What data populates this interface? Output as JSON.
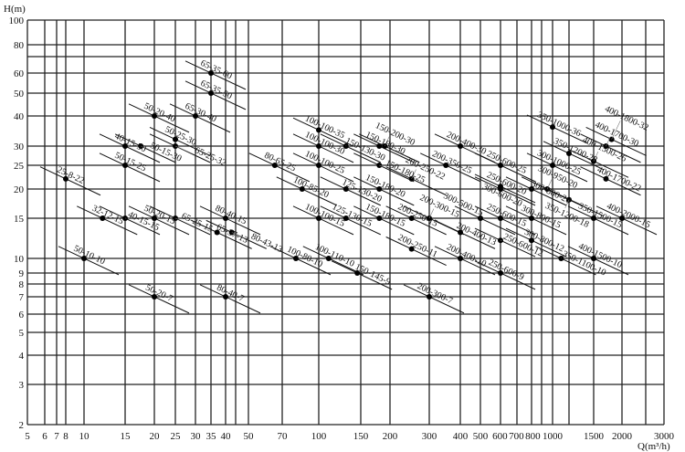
{
  "chart_data": {
    "type": "scatter",
    "title": "",
    "ylabel": "H(m)",
    "xlabel": "Q(m³/h)",
    "xscale": "log",
    "yscale": "log",
    "xlim": [
      5,
      3000
    ],
    "ylim": [
      2,
      100
    ],
    "grid": true,
    "x_ticks": [
      5,
      6,
      7,
      8,
      10,
      15,
      20,
      25,
      30,
      35,
      40,
      50,
      70,
      100,
      150,
      200,
      300,
      400,
      500,
      600,
      700,
      800,
      1000,
      1500,
      2000,
      3000
    ],
    "x_grid_extra": [
      45,
      900,
      1200,
      2500
    ],
    "y_ticks": [
      2,
      3,
      4,
      5,
      6,
      7,
      8,
      9,
      10,
      15,
      20,
      25,
      30,
      40,
      50,
      60,
      80,
      100
    ],
    "y_grid_extra": [
      70
    ],
    "points": [
      {
        "label": "25-8-22",
        "q": 8,
        "h": 22
      },
      {
        "label": "32-12-15",
        "q": 12,
        "h": 15
      },
      {
        "label": "40-15-15",
        "q": 15,
        "h": 15
      },
      {
        "label": "50-20-15",
        "q": 20,
        "h": 15
      },
      {
        "label": "65-25-15",
        "q": 25,
        "h": 15
      },
      {
        "label": "65-37-13",
        "q": 37,
        "h": 13
      },
      {
        "label": "80-40-15",
        "q": 40,
        "h": 15
      },
      {
        "label": "80-43-13",
        "q": 43,
        "h": 13
      },
      {
        "label": "50-10-10",
        "q": 10,
        "h": 10
      },
      {
        "label": "50-20-7",
        "q": 20,
        "h": 7
      },
      {
        "label": "80-40-7",
        "q": 40,
        "h": 7
      },
      {
        "label": "50-15-25",
        "q": 15,
        "h": 25
      },
      {
        "label": "40-15-30",
        "q": 15,
        "h": 30
      },
      {
        "label": "50-15-30",
        "q": 17.5,
        "h": 30
      },
      {
        "label": "50-20-40",
        "q": 20,
        "h": 40
      },
      {
        "label": "50-25-30",
        "q": 25,
        "h": 32
      },
      {
        "label": "65-25-32",
        "q": 25,
        "h": 30
      },
      {
        "label": "65-30-40",
        "q": 30,
        "h": 40
      },
      {
        "label": "65-35-50",
        "q": 35,
        "h": 50
      },
      {
        "label": "65-35-60",
        "q": 35,
        "h": 60
      },
      {
        "label": "80-65-25",
        "q": 65,
        "h": 25
      },
      {
        "label": "100-100-35",
        "q": 100,
        "h": 35
      },
      {
        "label": "100-100-30",
        "q": 100,
        "h": 30
      },
      {
        "label": "100-100-25",
        "q": 100,
        "h": 25
      },
      {
        "label": "150-130-30",
        "q": 130,
        "h": 30
      },
      {
        "label": "150-180-30",
        "q": 180,
        "h": 30
      },
      {
        "label": "150-200-30",
        "q": 190,
        "h": 30
      },
      {
        "label": "150-180-25",
        "q": 180,
        "h": 25
      },
      {
        "label": "200-250-22",
        "q": 250,
        "h": 22
      },
      {
        "label": "100-85-20",
        "q": 85,
        "h": 20
      },
      {
        "label": "125-130-20",
        "q": 130,
        "h": 20
      },
      {
        "label": "150-180-20",
        "q": 180,
        "h": 20
      },
      {
        "label": "100-100-15",
        "q": 100,
        "h": 15
      },
      {
        "label": "125-130-15",
        "q": 130,
        "h": 15
      },
      {
        "label": "150-180-15",
        "q": 180,
        "h": 15
      },
      {
        "label": "200-250-15",
        "q": 250,
        "h": 15
      },
      {
        "label": "200-300-15",
        "q": 300,
        "h": 15
      },
      {
        "label": "200-400-13",
        "q": 400,
        "h": 13
      },
      {
        "label": "200-400-10",
        "q": 400,
        "h": 10
      },
      {
        "label": "200-250-11",
        "q": 250,
        "h": 11
      },
      {
        "label": "100-80-10",
        "q": 80,
        "h": 10
      },
      {
        "label": "100-110-10",
        "q": 110,
        "h": 10
      },
      {
        "label": "150-145-9",
        "q": 145,
        "h": 9
      },
      {
        "label": "200-300-7",
        "q": 300,
        "h": 7
      },
      {
        "label": "200-400-30",
        "q": 400,
        "h": 30
      },
      {
        "label": "200-350-25",
        "q": 350,
        "h": 25
      },
      {
        "label": "250-600-25",
        "q": 600,
        "h": 25
      },
      {
        "label": "250-600-20",
        "q": 600,
        "h": 20.5
      },
      {
        "label": "300-600-20",
        "q": 600,
        "h": 20
      },
      {
        "label": "300-800-20",
        "q": 800,
        "h": 20
      },
      {
        "label": "300-950-20",
        "q": 950,
        "h": 20
      },
      {
        "label": "250-600-15",
        "q": 600,
        "h": 15
      },
      {
        "label": "300-500-15",
        "q": 500,
        "h": 15
      },
      {
        "label": "250-600-12",
        "q": 600,
        "h": 12
      },
      {
        "label": "250-600-9",
        "q": 600,
        "h": 9
      },
      {
        "label": "300-800-15",
        "q": 800,
        "h": 15
      },
      {
        "label": "300-800-12",
        "q": 800,
        "h": 12
      },
      {
        "label": "350-1100-10",
        "q": 1100,
        "h": 10
      },
      {
        "label": "400-1500-10",
        "q": 1500,
        "h": 10
      },
      {
        "label": "350-1500-15",
        "q": 1500,
        "h": 15
      },
      {
        "label": "400-2000-15",
        "q": 2000,
        "h": 15
      },
      {
        "label": "350-1200-18",
        "q": 1200,
        "h": 18
      },
      {
        "label": "300-1000-25",
        "q": 1000,
        "h": 25
      },
      {
        "label": "350-1200-28",
        "q": 1200,
        "h": 28
      },
      {
        "label": "350-1000-36",
        "q": 1000,
        "h": 36
      },
      {
        "label": "400-1500-26",
        "q": 1500,
        "h": 26
      },
      {
        "label": "400-1700-30",
        "q": 1700,
        "h": 30
      },
      {
        "label": "400-1800-32",
        "q": 1800,
        "h": 32
      },
      {
        "label": "400-1700-22",
        "q": 1700,
        "h": 22
      }
    ]
  }
}
